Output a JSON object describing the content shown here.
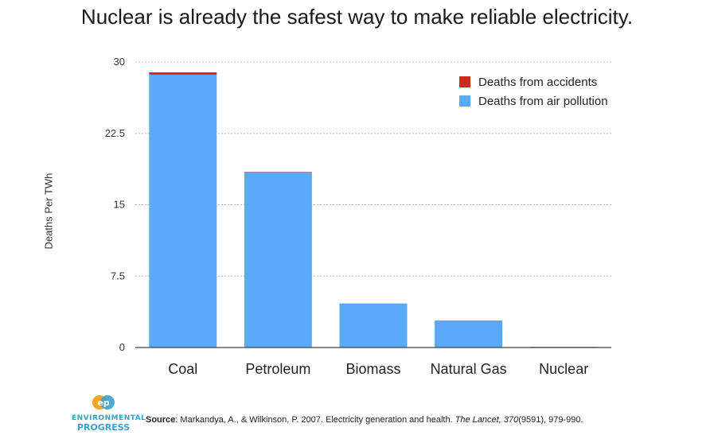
{
  "chart_data": {
    "type": "bar",
    "stacked": true,
    "title": "Nuclear is already the safest way to make reliable electricity.",
    "ylabel": "Deaths Per TWh",
    "xlabel": "",
    "ylim": [
      0,
      30
    ],
    "yticks": [
      "30",
      "22.5",
      "15",
      "7.5",
      "0"
    ],
    "ytick_values": [
      30,
      22.5,
      15,
      7.5,
      0
    ],
    "grid": true,
    "legend_position": "top-right",
    "categories": [
      "Coal",
      "Petroleum",
      "Biomass",
      "Natural Gas",
      "Nuclear"
    ],
    "series": [
      {
        "name": "Deaths from air pollution",
        "color": "#5aaaf9",
        "values": [
          28.67,
          18.43,
          4.63,
          2.82,
          0.05
        ]
      },
      {
        "name": "Deaths from accidents",
        "color": "#cc2b1d",
        "values": [
          0.25,
          0.03,
          0.0,
          0.02,
          0.02
        ]
      }
    ],
    "legend": [
      {
        "label": "Deaths from accidents",
        "color": "#cc2b1d"
      },
      {
        "label": "Deaths from air pollution",
        "color": "#5aaaf9"
      }
    ]
  },
  "logo": {
    "mark": "ep",
    "line1": "ENVIRONMENTAL",
    "line2": "PROGRESS"
  },
  "source": {
    "label": "Source",
    "pre": ": Markandya, A., & Wilkinson, P. 2007. Electricity generation and health. ",
    "journal": "The Lancet, 370",
    "post": "(9591), 979-990."
  }
}
